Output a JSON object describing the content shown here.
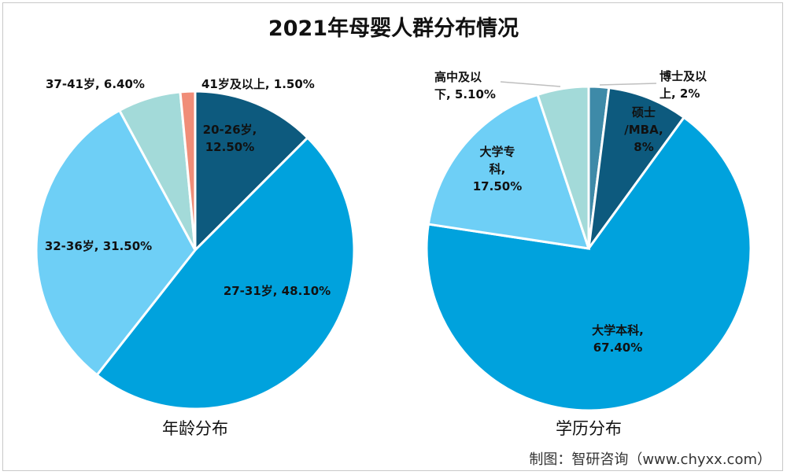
{
  "title": "2021年母婴人群分布情况",
  "source": "制图：智研咨询（www.chyxx.com）",
  "chart_data": [
    {
      "type": "pie",
      "subtitle": "年龄分布",
      "slices": [
        {
          "label_lines": [
            "20-26岁,",
            "12.50%"
          ],
          "value": 12.5,
          "color": "#0d5a7e"
        },
        {
          "label_lines": [
            "27-31岁, 48.10%"
          ],
          "value": 48.1,
          "color": "#00a2dd"
        },
        {
          "label_lines": [
            "32-36岁, 31.50%"
          ],
          "value": 31.5,
          "color": "#6ecff6"
        },
        {
          "label_lines": [
            "37-41岁, 6.40%"
          ],
          "value": 6.4,
          "color": "#a3dad9"
        },
        {
          "label_lines": [
            "41岁及以上, 1.50%"
          ],
          "value": 1.5,
          "color": "#f08d78"
        }
      ]
    },
    {
      "type": "pie",
      "subtitle": "学历分布",
      "slices": [
        {
          "label_lines": [
            "博士及以",
            "上, 2%"
          ],
          "value": 2,
          "color": "#3e8aa8"
        },
        {
          "label_lines": [
            "硕士",
            "/MBA,",
            "8%"
          ],
          "value": 8,
          "color": "#0d5a7e"
        },
        {
          "label_lines": [
            "大学本科,",
            "67.40%"
          ],
          "value": 67.4,
          "color": "#00a2dd"
        },
        {
          "label_lines": [
            "大学专",
            "科,",
            "17.50%"
          ],
          "value": 17.5,
          "color": "#6ecff6"
        },
        {
          "label_lines": [
            "高中及以",
            "下, 5.10%"
          ],
          "value": 5.1,
          "color": "#a3dad9"
        }
      ]
    }
  ]
}
